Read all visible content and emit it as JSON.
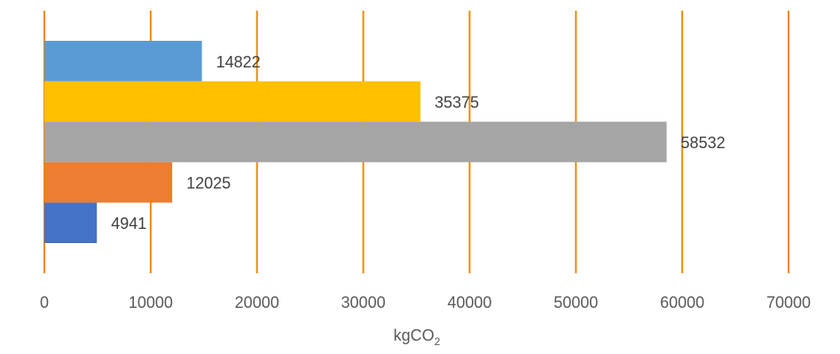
{
  "chart_data": {
    "type": "bar",
    "orientation": "horizontal",
    "title": "",
    "xlabel": "kgCO",
    "xlabel_subscript": "2",
    "ylabel": "",
    "xlim": [
      0,
      70000
    ],
    "x_ticks": [
      0,
      10000,
      20000,
      30000,
      40000,
      50000,
      60000,
      70000
    ],
    "x_tick_labels": [
      "0",
      "10000",
      "20000",
      "30000",
      "40000",
      "50000",
      "60000",
      "70000"
    ],
    "grid": "vertical",
    "legend": "none",
    "gridline_color": "#ED8B00",
    "bars": [
      {
        "value": 14822,
        "label": "14822",
        "color": "#5B9BD5"
      },
      {
        "value": 35375,
        "label": "35375",
        "color": "#FFC000"
      },
      {
        "value": 58532,
        "label": "58532",
        "color": "#A5A5A5"
      },
      {
        "value": 12025,
        "label": "12025",
        "color": "#ED7D31"
      },
      {
        "value": 4941,
        "label": "4941",
        "color": "#4472C4"
      }
    ]
  }
}
